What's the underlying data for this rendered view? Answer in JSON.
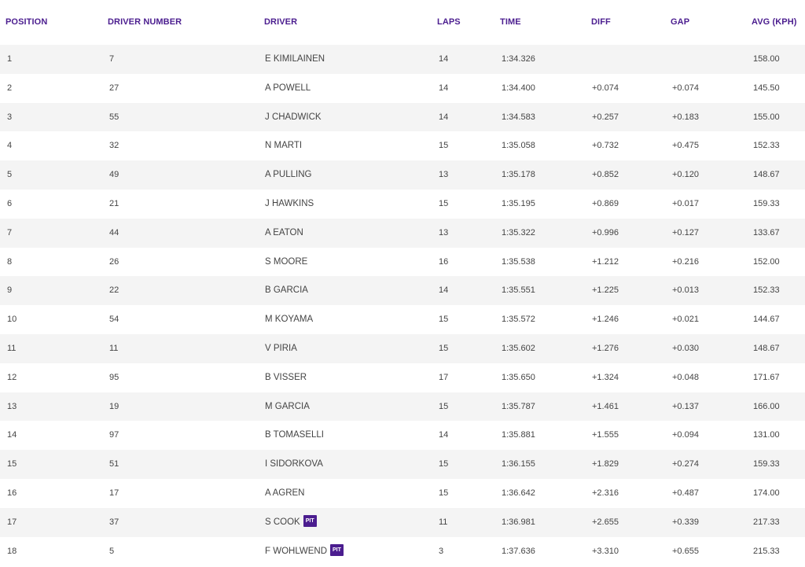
{
  "headers": {
    "position": "POSITION",
    "driver_number": "DRIVER NUMBER",
    "driver": "DRIVER",
    "laps": "LAPS",
    "time": "TIME",
    "diff": "DIFF",
    "gap": "GAP",
    "avg": "AVG (KPH)"
  },
  "pit_label": "PIT",
  "accent_color": "#4b1d8f",
  "rows": [
    {
      "position": "1",
      "number": "7",
      "driver": "E KIMILAINEN",
      "laps": "14",
      "time": "1:34.326",
      "diff": "",
      "gap": "",
      "avg": "158.00",
      "pit": false
    },
    {
      "position": "2",
      "number": "27",
      "driver": "A POWELL",
      "laps": "14",
      "time": "1:34.400",
      "diff": "+0.074",
      "gap": "+0.074",
      "avg": "145.50",
      "pit": false
    },
    {
      "position": "3",
      "number": "55",
      "driver": "J CHADWICK",
      "laps": "14",
      "time": "1:34.583",
      "diff": "+0.257",
      "gap": "+0.183",
      "avg": "155.00",
      "pit": false
    },
    {
      "position": "4",
      "number": "32",
      "driver": "N MARTI",
      "laps": "15",
      "time": "1:35.058",
      "diff": "+0.732",
      "gap": "+0.475",
      "avg": "152.33",
      "pit": false
    },
    {
      "position": "5",
      "number": "49",
      "driver": "A PULLING",
      "laps": "13",
      "time": "1:35.178",
      "diff": "+0.852",
      "gap": "+0.120",
      "avg": "148.67",
      "pit": false
    },
    {
      "position": "6",
      "number": "21",
      "driver": "J HAWKINS",
      "laps": "15",
      "time": "1:35.195",
      "diff": "+0.869",
      "gap": "+0.017",
      "avg": "159.33",
      "pit": false
    },
    {
      "position": "7",
      "number": "44",
      "driver": "A EATON",
      "laps": "13",
      "time": "1:35.322",
      "diff": "+0.996",
      "gap": "+0.127",
      "avg": "133.67",
      "pit": false
    },
    {
      "position": "8",
      "number": "26",
      "driver": "S MOORE",
      "laps": "16",
      "time": "1:35.538",
      "diff": "+1.212",
      "gap": "+0.216",
      "avg": "152.00",
      "pit": false
    },
    {
      "position": "9",
      "number": "22",
      "driver": "B GARCIA",
      "laps": "14",
      "time": "1:35.551",
      "diff": "+1.225",
      "gap": "+0.013",
      "avg": "152.33",
      "pit": false
    },
    {
      "position": "10",
      "number": "54",
      "driver": "M KOYAMA",
      "laps": "15",
      "time": "1:35.572",
      "diff": "+1.246",
      "gap": "+0.021",
      "avg": "144.67",
      "pit": false
    },
    {
      "position": "11",
      "number": "11",
      "driver": "V PIRIA",
      "laps": "15",
      "time": "1:35.602",
      "diff": "+1.276",
      "gap": "+0.030",
      "avg": "148.67",
      "pit": false
    },
    {
      "position": "12",
      "number": "95",
      "driver": "B VISSER",
      "laps": "17",
      "time": "1:35.650",
      "diff": "+1.324",
      "gap": "+0.048",
      "avg": "171.67",
      "pit": false
    },
    {
      "position": "13",
      "number": "19",
      "driver": "M GARCIA",
      "laps": "15",
      "time": "1:35.787",
      "diff": "+1.461",
      "gap": "+0.137",
      "avg": "166.00",
      "pit": false
    },
    {
      "position": "14",
      "number": "97",
      "driver": "B TOMASELLI",
      "laps": "14",
      "time": "1:35.881",
      "diff": "+1.555",
      "gap": "+0.094",
      "avg": "131.00",
      "pit": false
    },
    {
      "position": "15",
      "number": "51",
      "driver": "I SIDORKOVA",
      "laps": "15",
      "time": "1:36.155",
      "diff": "+1.829",
      "gap": "+0.274",
      "avg": "159.33",
      "pit": false
    },
    {
      "position": "16",
      "number": "17",
      "driver": "A AGREN",
      "laps": "15",
      "time": "1:36.642",
      "diff": "+2.316",
      "gap": "+0.487",
      "avg": "174.00",
      "pit": false
    },
    {
      "position": "17",
      "number": "37",
      "driver": "S COOK",
      "laps": "11",
      "time": "1:36.981",
      "diff": "+2.655",
      "gap": "+0.339",
      "avg": "217.33",
      "pit": true
    },
    {
      "position": "18",
      "number": "5",
      "driver": "F WOHLWEND",
      "laps": "3",
      "time": "1:37.636",
      "diff": "+3.310",
      "gap": "+0.655",
      "avg": "215.33",
      "pit": true
    }
  ]
}
